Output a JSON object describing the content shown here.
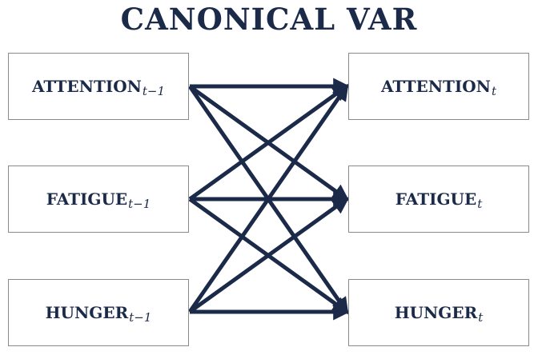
{
  "title": "CANONICAL VAR",
  "colors": {
    "ink": "#1b2a48",
    "box_border": "#8a8a8a"
  },
  "nodes": {
    "left": [
      {
        "id": "attention_prev",
        "label": "ATTENTION",
        "sub": "t−1"
      },
      {
        "id": "fatigue_prev",
        "label": "FATIGUE",
        "sub": "t−1"
      },
      {
        "id": "hunger_prev",
        "label": "HUNGER",
        "sub": "t−1"
      }
    ],
    "right": [
      {
        "id": "attention_now",
        "label": "ATTENTION",
        "sub": "t"
      },
      {
        "id": "fatigue_now",
        "label": "FATIGUE",
        "sub": "t"
      },
      {
        "id": "hunger_now",
        "label": "HUNGER",
        "sub": "t"
      }
    ]
  },
  "edges": [
    {
      "from": "attention_prev",
      "to": "attention_now"
    },
    {
      "from": "attention_prev",
      "to": "fatigue_now"
    },
    {
      "from": "attention_prev",
      "to": "hunger_now"
    },
    {
      "from": "fatigue_prev",
      "to": "attention_now"
    },
    {
      "from": "fatigue_prev",
      "to": "fatigue_now"
    },
    {
      "from": "fatigue_prev",
      "to": "hunger_now"
    },
    {
      "from": "hunger_prev",
      "to": "attention_now"
    },
    {
      "from": "hunger_prev",
      "to": "fatigue_now"
    },
    {
      "from": "hunger_prev",
      "to": "hunger_now"
    }
  ]
}
